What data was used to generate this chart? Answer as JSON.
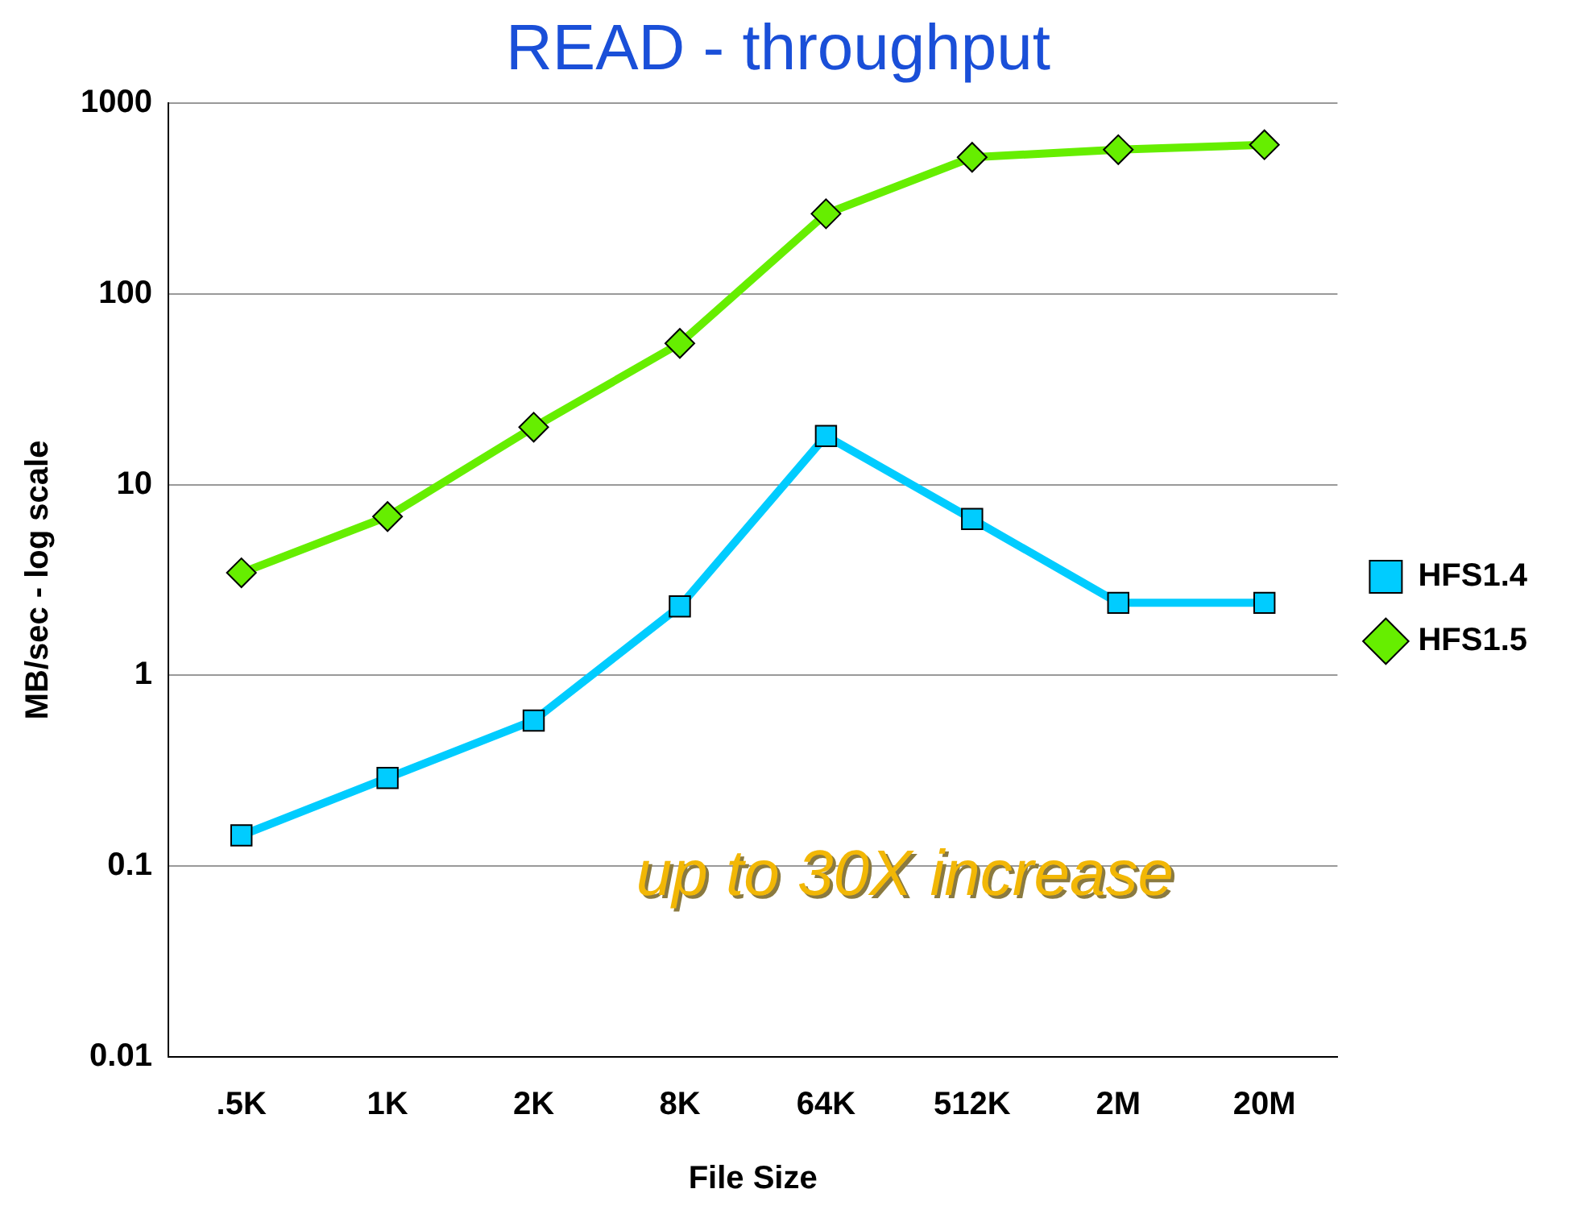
{
  "chart_data": {
    "type": "line",
    "title": "READ - throughput",
    "xlabel": "File Size",
    "ylabel": "MB/sec - log scale",
    "categories": [
      ".5K",
      "1K",
      "2K",
      "8K",
      "64K",
      "512K",
      "2M",
      "20M"
    ],
    "series": [
      {
        "name": "HFS1.4",
        "color": "#00ccff",
        "marker": "square",
        "values": [
          0.145,
          0.29,
          0.58,
          2.3,
          18,
          6.6,
          2.4,
          2.4
        ]
      },
      {
        "name": "HFS1.5",
        "color": "#66ee00",
        "marker": "diamond",
        "values": [
          3.45,
          6.8,
          20,
          55,
          263,
          520,
          570,
          605
        ]
      }
    ],
    "log": "y",
    "ylim": [
      0.01,
      1000
    ],
    "yticks": [
      0.01,
      0.1,
      1,
      10,
      100,
      1000
    ],
    "grid": "y",
    "legend": "right",
    "line_style": "solid",
    "annotations": [
      "up to 30X increase"
    ]
  }
}
